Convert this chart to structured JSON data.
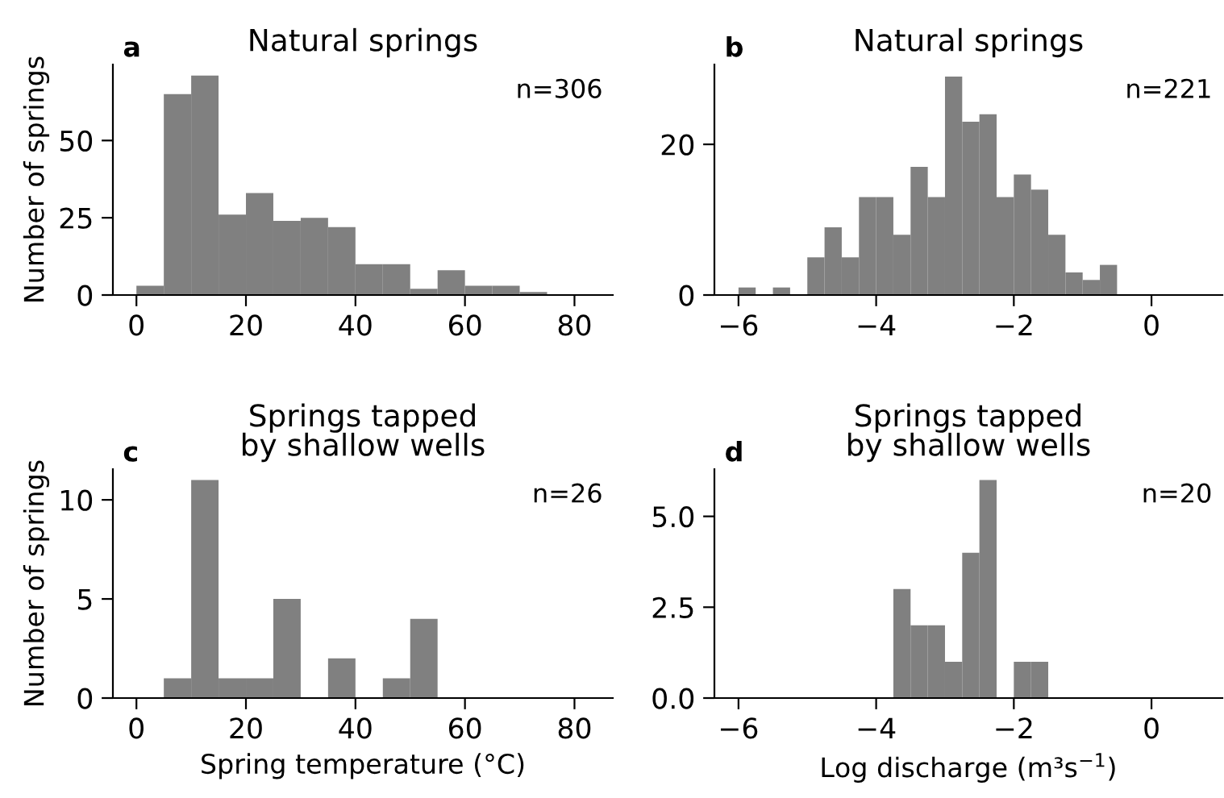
{
  "chart_data": [
    {
      "type": "histogram",
      "title": "Natural springs",
      "ylabel": "Number of springs",
      "annotations": [
        "a",
        "n=306"
      ],
      "color": "#808080",
      "bins": [
        0,
        5,
        10,
        15,
        20,
        25,
        30,
        35,
        40,
        45,
        50,
        55,
        60,
        65,
        70,
        75
      ],
      "values": [
        3,
        65,
        71,
        26,
        33,
        24,
        25,
        22,
        10,
        10,
        2,
        8,
        3,
        3,
        1
      ],
      "xlim": [
        -4.3,
        87
      ],
      "xticks": [
        0,
        20,
        40,
        60,
        80
      ],
      "ylim": [
        0,
        74.6
      ],
      "yticks": [
        0,
        25,
        50
      ],
      "grid": false
    },
    {
      "type": "histogram",
      "title": "Natural springs",
      "annotations": [
        "b",
        "n=221"
      ],
      "color": "#808080",
      "bins": [
        -6,
        -5.75,
        -5.5,
        -5.25,
        -5,
        -4.75,
        -4.5,
        -4.25,
        -4,
        -3.75,
        -3.5,
        -3.25,
        -3,
        -2.75,
        -2.5,
        -2.25,
        -2,
        -1.75,
        -1.5,
        -1.25,
        -1,
        -0.75,
        -0.5
      ],
      "values": [
        1,
        0,
        1,
        0,
        5,
        9,
        5,
        13,
        13,
        8,
        17,
        13,
        29,
        23,
        24,
        13,
        16,
        14,
        8,
        3,
        2,
        4
      ],
      "xlim": [
        -6.35,
        1.03
      ],
      "xticks": [
        {
          "value": -6,
          "label": "−6"
        },
        {
          "value": -4,
          "label": "−4"
        },
        {
          "value": -2,
          "label": "−2"
        },
        0
      ],
      "ylim": [
        0,
        30.6
      ],
      "yticks": [
        0,
        20
      ],
      "grid": false
    },
    {
      "type": "histogram",
      "title": "Springs tapped\nby shallow wells",
      "xlabel": "Spring temperature (°C)",
      "ylabel": "Number of springs",
      "annotations": [
        "c",
        "n=26"
      ],
      "color": "#808080",
      "bins": [
        5,
        10,
        15,
        20,
        25,
        30,
        35,
        40,
        45,
        50,
        55
      ],
      "values": [
        1,
        11,
        1,
        1,
        5,
        0,
        2,
        0,
        1,
        4
      ],
      "xlim": [
        -4.3,
        87
      ],
      "xticks": [
        0,
        20,
        40,
        60,
        80
      ],
      "ylim": [
        0,
        11.55
      ],
      "yticks": [
        0,
        5,
        10
      ],
      "grid": false
    },
    {
      "type": "histogram",
      "title": "Springs tapped\nby shallow wells",
      "xlabel": "Log discharge (m³s$^{−1}$)",
      "annotations": [
        "d",
        "n=20"
      ],
      "color": "#808080",
      "bins": [
        -3.75,
        -3.5,
        -3.25,
        -3,
        -2.75,
        -2.5,
        -2.25,
        -2,
        -1.75,
        -1.5
      ],
      "values": [
        3,
        2,
        2,
        1,
        4,
        6,
        0,
        1,
        1
      ],
      "xlim": [
        -6.35,
        1.03
      ],
      "xticks": [
        {
          "value": -6,
          "label": "−6"
        },
        {
          "value": -4,
          "label": "−4"
        },
        {
          "value": -2,
          "label": "−2"
        },
        0
      ],
      "ylim": [
        0,
        6.3
      ],
      "yticks": [
        {
          "value": 0,
          "label": "0.0"
        },
        {
          "value": 2.5,
          "label": "2.5"
        },
        {
          "value": 5,
          "label": "5.0"
        }
      ],
      "grid": false
    }
  ]
}
